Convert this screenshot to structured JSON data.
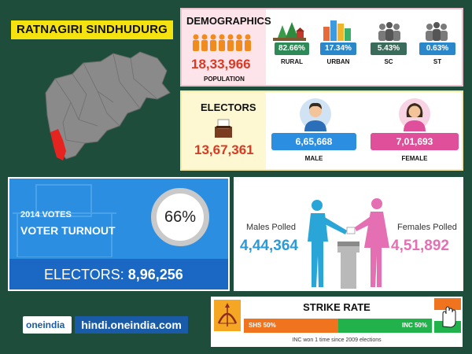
{
  "title": "RATNAGIRI SINDHUDURG",
  "colors": {
    "title_bg": "#f5e30f",
    "accent_red": "#d83a23",
    "blue": "#2b8ee0",
    "pink": "#e46fb3",
    "shs_orange": "#f0731e",
    "inc_green": "#22b24c"
  },
  "demographics": {
    "heading": "DEMOGRAPHICS",
    "population": "18,33,966",
    "population_label": "POPULATION",
    "stats": [
      {
        "value": "82.66%",
        "label": "RURAL",
        "color": "#2e8b57",
        "icon": "trees-icon"
      },
      {
        "value": "17.34%",
        "label": "URBAN",
        "color": "#2a87c9",
        "icon": "buildings-icon"
      },
      {
        "value": "5.43%",
        "label": "SC",
        "color": "#3b6b5a",
        "icon": "group-icon"
      },
      {
        "value": "0.63%",
        "label": "ST",
        "color": "#2a87c9",
        "icon": "group-icon"
      }
    ]
  },
  "electors": {
    "heading": "ELECTORS",
    "total": "13,67,361",
    "male": "6,65,668",
    "male_label": "MALE",
    "female": "7,01,693",
    "female_label": "FEMALE"
  },
  "turnout": {
    "year_label": "2014 VOTES",
    "label": "VOTER TURNOUT",
    "percent": "66%",
    "percent_value": 66,
    "electors_label": "ELECTORS:",
    "electors_value": "8,96,256"
  },
  "polled": {
    "male_label": "Males Polled",
    "male_value": "4,44,364",
    "female_label": "Females Polled",
    "female_value": "4,51,892"
  },
  "logo": {
    "brand": "oneindia",
    "url": "hindi.oneindia.com"
  },
  "strike_rate": {
    "heading": "STRIKE RATE",
    "shs_label": "SHS 50%",
    "inc_label": "INC 50%",
    "shs_value": 50,
    "inc_value": 50,
    "note": "INC won 1 time since 2009 elections"
  }
}
